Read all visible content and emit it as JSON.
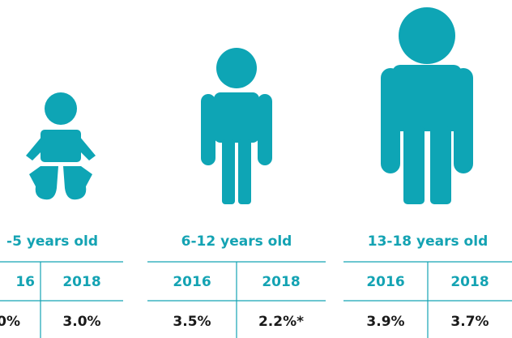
{
  "groups": [
    {
      "label": "-5 years old",
      "headers": [
        "16",
        "2018"
      ],
      "values": [
        "0%",
        "3.0%"
      ]
    },
    {
      "label": "6-12 years old",
      "headers": [
        "2016",
        "2018"
      ],
      "values": [
        "3.5%",
        "2.2%*"
      ]
    },
    {
      "label": "13-18 years old",
      "headers": [
        "2016",
        "2018"
      ],
      "values": [
        "3.9%",
        "3.7%"
      ]
    }
  ]
}
